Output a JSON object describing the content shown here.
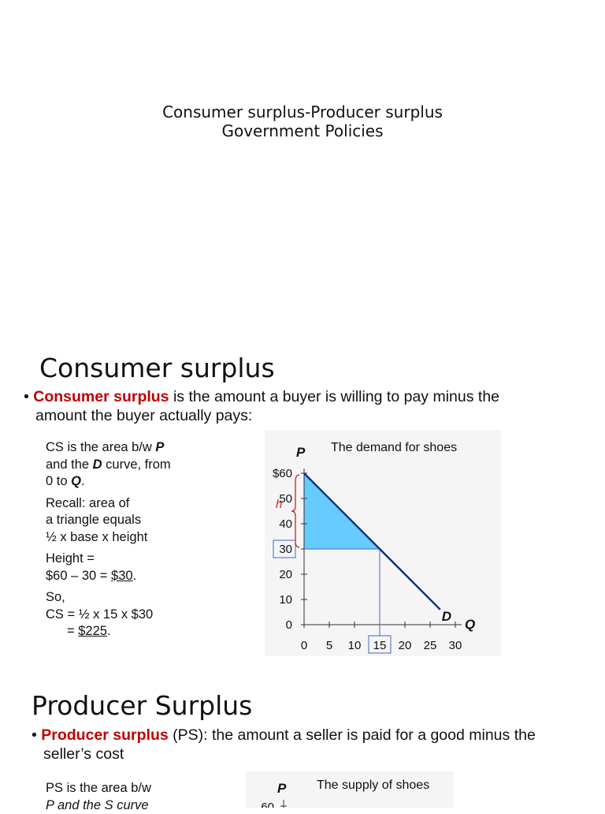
{
  "title_slide": {
    "line1": "Consumer surplus-Producer surplus",
    "line2": "Government Policies"
  },
  "cs_slide": {
    "heading": "Consumer surplus",
    "bullet_term": "Consumer surplus",
    "bullet_rest_1": " is the amount a buyer is willing to pay minus the",
    "bullet_line_2": "amount the buyer actually pays:",
    "notes": {
      "n1a": "CS is the area b/w ",
      "n1a_bold": "P",
      "n1b": "and the ",
      "n1b_bold": "D",
      "n1b_rest": " curve, from",
      "n1c": "0 to ",
      "n1c_bold": "Q",
      "n1c_end": ".",
      "n2a": "Recall:  area of",
      "n2b": "a triangle equals",
      "n2c": "½ x base x height",
      "n3a": "Height =",
      "n3b": "$60 – 30 = ",
      "n3b_u": "$30",
      "n3b_end": ".",
      "n4a": "So,",
      "n4b": "CS = ½ x 15 x $30",
      "n4c": "= ",
      "n4c_u": "$225",
      "n4c_end": "."
    }
  },
  "ps_slide": {
    "heading": "Producer Surplus",
    "bullet_term": "Producer surplus",
    "bullet_rest_1": " (PS): the amount a seller  is paid for a good minus the",
    "bullet_line_2": "seller’s cost",
    "notes_1": "PS is the area b/w",
    "notes_2": "P and the S curve"
  },
  "chart_data": [
    {
      "type": "line",
      "title": "The demand for shoes",
      "ylabel": "P",
      "xlabel": "Q",
      "x_ticks": [
        "0",
        "5",
        "10",
        "15",
        "20",
        "25",
        "30"
      ],
      "y_ticks": [
        "0",
        "10",
        "20",
        "30",
        "40",
        "50",
        "$60"
      ],
      "xlim": [
        0,
        30
      ],
      "ylim": [
        0,
        60
      ],
      "series": [
        {
          "name": "D",
          "x": [
            0,
            27
          ],
          "y": [
            60,
            6
          ]
        }
      ],
      "shaded_region": {
        "label": "consumer surplus",
        "points": [
          [
            0,
            60
          ],
          [
            0,
            30
          ],
          [
            15,
            30
          ]
        ],
        "color": "#66ccff"
      },
      "equilibrium": {
        "x": 15,
        "y": 30
      },
      "annotations": {
        "height_label": "h",
        "highlighted_x": "15",
        "highlighted_y": "30"
      },
      "colors": {
        "curve": "#0a2f8a",
        "guide": "#4466cc",
        "brace": "#d02020",
        "box": "#4466cc"
      }
    },
    {
      "type": "line",
      "title": "The supply of shoes",
      "ylabel": "P",
      "y_ticks": [
        "60"
      ]
    }
  ]
}
